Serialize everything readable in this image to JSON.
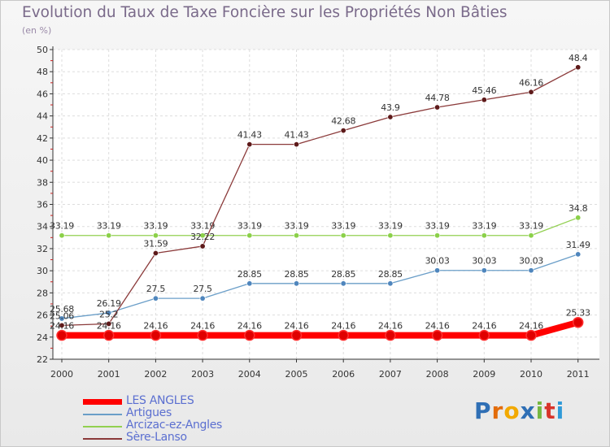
{
  "chart_data": {
    "type": "line",
    "title": "Evolution du Taux de Taxe Foncière sur les Propriétés Non Bâties",
    "subtitle": "(en %)",
    "xlabel": "",
    "ylabel": "",
    "categories": [
      "2000",
      "2001",
      "2002",
      "2003",
      "2004",
      "2005",
      "2006",
      "2007",
      "2008",
      "2009",
      "2010",
      "2011"
    ],
    "ylim": [
      22,
      50
    ],
    "yticks": [
      22,
      24,
      26,
      28,
      30,
      32,
      34,
      36,
      38,
      40,
      42,
      44,
      46,
      48,
      50
    ],
    "grid": true,
    "legend_position": "bottom-left",
    "series": [
      {
        "name": "LES ANGLES",
        "color": "#ff0000",
        "point_color": "#e00000",
        "thick": true,
        "values": [
          24.16,
          24.16,
          24.16,
          24.16,
          24.16,
          24.16,
          24.16,
          24.16,
          24.16,
          24.16,
          24.16,
          25.33
        ],
        "labels": [
          "24.16",
          "24.16",
          "24.16",
          "24.16",
          "24.16",
          "24.16",
          "24.16",
          "24.16",
          "24.16",
          "24.16",
          "24.16",
          "25.33"
        ]
      },
      {
        "name": "Artigues",
        "color": "#6a9ec8",
        "point_color": "#4f86bd",
        "thick": false,
        "values": [
          25.68,
          26.19,
          27.5,
          27.5,
          28.85,
          28.85,
          28.85,
          28.85,
          30.03,
          30.03,
          30.03,
          31.49
        ],
        "labels": [
          "25.68",
          "26.19",
          "27.5",
          "27.5",
          "28.85",
          "28.85",
          "28.85",
          "28.85",
          "30.03",
          "30.03",
          "30.03",
          "31.49"
        ]
      },
      {
        "name": "Arcizac-ez-Angles",
        "color": "#92d050",
        "point_color": "#8bd049",
        "thick": false,
        "values": [
          33.19,
          33.19,
          33.19,
          33.19,
          33.19,
          33.19,
          33.19,
          33.19,
          33.19,
          33.19,
          33.19,
          34.8
        ],
        "labels": [
          "33.19",
          "33.19",
          "33.19",
          "33.19",
          "33.19",
          "33.19",
          "33.19",
          "33.19",
          "33.19",
          "33.19",
          "33.19",
          "34.8"
        ]
      },
      {
        "name": "Sère-Lanso",
        "color": "#8b3a3a",
        "point_color": "#5e1a1a",
        "thick": false,
        "values": [
          25.06,
          25.2,
          31.59,
          32.22,
          41.43,
          41.43,
          42.68,
          43.9,
          44.78,
          45.46,
          46.16,
          48.4
        ],
        "labels": [
          "25.06",
          "25.2",
          "31.59",
          "32.22",
          "41.43",
          "41.43",
          "42.68",
          "43.9",
          "44.78",
          "45.46",
          "46.16",
          "48.4"
        ]
      }
    ]
  },
  "logo": {
    "letters": [
      "P",
      "r",
      "o",
      "x",
      "i",
      "t",
      "i"
    ],
    "colors": [
      "#2f6fb5",
      "#e36c0a",
      "#f2a900",
      "#2f6fb5",
      "#75b741",
      "#d8342a",
      "#2f9ad8"
    ]
  }
}
